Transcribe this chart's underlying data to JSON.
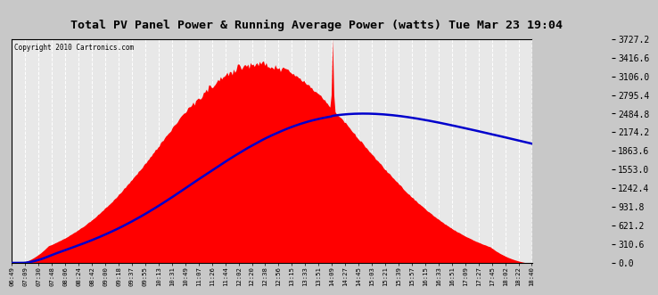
{
  "title": "Total PV Panel Power & Running Average Power (watts) Tue Mar 23 19:04",
  "copyright": "Copyright 2010 Cartronics.com",
  "y_ticks": [
    0.0,
    310.6,
    621.2,
    931.8,
    1242.4,
    1553.0,
    1863.6,
    2174.2,
    2484.8,
    2795.4,
    3106.0,
    3416.6,
    3727.2
  ],
  "ymax": 3727.2,
  "ymin": 0.0,
  "x_labels": [
    "06:49",
    "07:09",
    "07:30",
    "07:48",
    "08:06",
    "08:24",
    "08:42",
    "09:00",
    "09:18",
    "09:37",
    "09:55",
    "10:13",
    "10:31",
    "10:49",
    "11:07",
    "11:26",
    "11:44",
    "12:02",
    "12:20",
    "12:38",
    "12:56",
    "13:15",
    "13:33",
    "13:51",
    "14:09",
    "14:27",
    "14:45",
    "15:03",
    "15:21",
    "15:39",
    "15:57",
    "16:15",
    "16:33",
    "16:51",
    "17:09",
    "17:27",
    "17:45",
    "18:02",
    "18:22",
    "18:40"
  ],
  "bg_color": "#ffffff",
  "plot_bg_color": "#e8e8e8",
  "fill_color": "#ff0000",
  "avg_color": "#0000cc",
  "title_bg": "#ffffff",
  "grid_color": "#ffffff",
  "border_color": "#000000",
  "outer_bg": "#c8c8c8"
}
